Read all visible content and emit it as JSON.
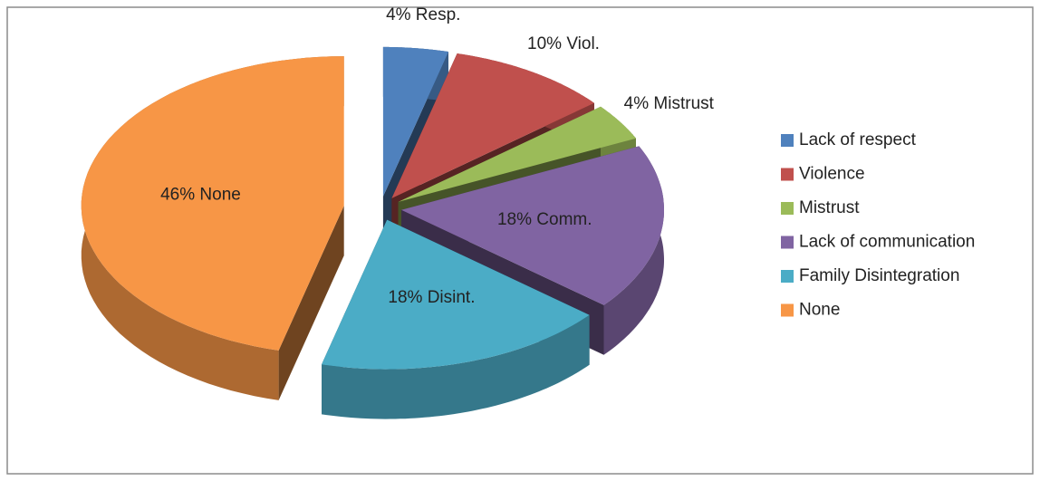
{
  "chart_data": {
    "type": "pie",
    "categories": [
      "Lack of respect",
      "Violence",
      "Mistrust",
      "Lack of communication",
      "Family Disintegration",
      "None"
    ],
    "values": [
      4,
      10,
      4,
      18,
      18,
      46
    ],
    "value_labels": [
      "4% Resp.",
      "10% Viol.",
      "4% Mistrust",
      "18% Comm.",
      "18% Disint.",
      "46% None"
    ],
    "colors": [
      "#4f81bd",
      "#c0504d",
      "#9bbb59",
      "#8064a2",
      "#4bacc6",
      "#f79646"
    ],
    "legend": "right"
  }
}
